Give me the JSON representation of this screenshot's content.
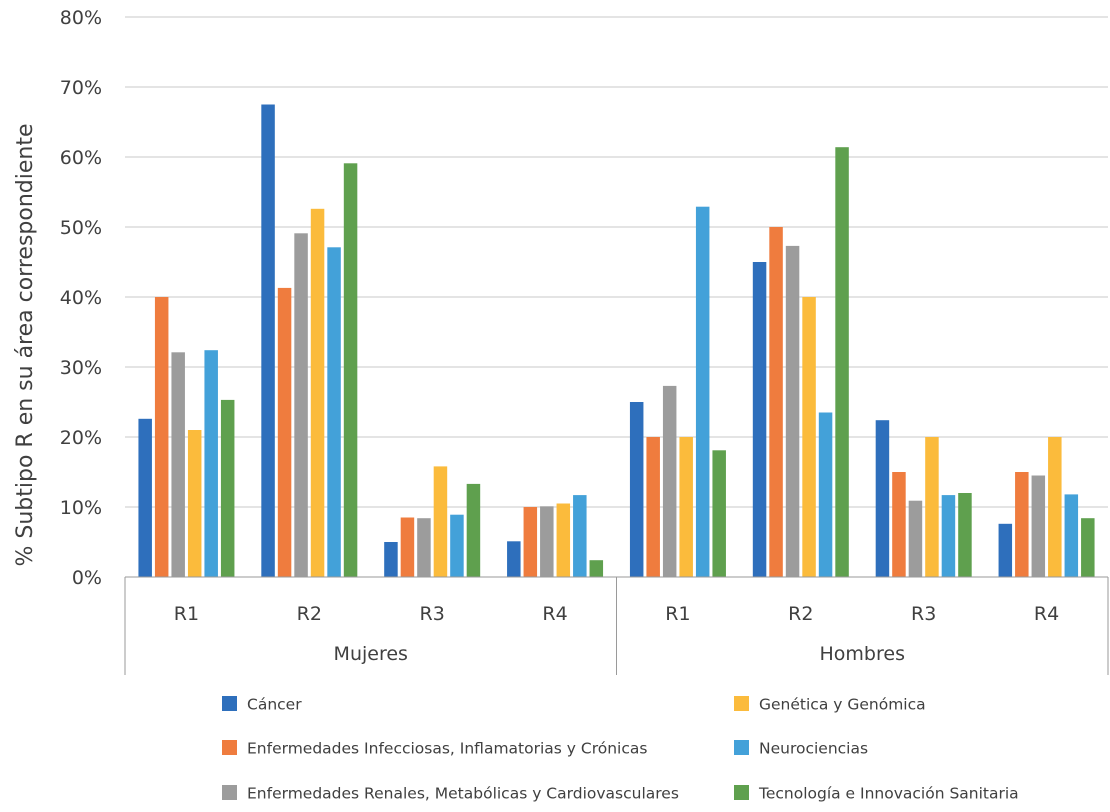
{
  "chart_data": {
    "type": "bar",
    "ylabel": "% Subtipo R en su área correspondiente",
    "ylim": [
      0,
      80
    ],
    "yticks": [
      0,
      10,
      20,
      30,
      40,
      50,
      60,
      70,
      80
    ],
    "ytick_labels": [
      "0%",
      "10%",
      "20%",
      "30%",
      "40%",
      "50%",
      "60%",
      "70%",
      "80%"
    ],
    "grid": true,
    "legend_position": "bottom",
    "groups": [
      {
        "label": "Mujeres",
        "categories": [
          "R1",
          "R2",
          "R3",
          "R4"
        ]
      },
      {
        "label": "Hombres",
        "categories": [
          "R1",
          "R2",
          "R3",
          "R4"
        ]
      }
    ],
    "categories": [
      "R1",
      "R2",
      "R3",
      "R4",
      "R1",
      "R2",
      "R3",
      "R4"
    ],
    "series": [
      {
        "name": "Cáncer",
        "color": "#2e6fbc",
        "values": [
          22.6,
          67.5,
          5.0,
          5.1,
          25.0,
          45.0,
          22.4,
          7.6
        ]
      },
      {
        "name": "Enfermedades Infecciosas, Inflamatorias y Crónicas",
        "color": "#ef7c3e",
        "values": [
          40.0,
          41.3,
          8.5,
          10.0,
          20.0,
          50.0,
          15.0,
          15.0
        ]
      },
      {
        "name": "Enfermedades Renales, Metabólicas y Cardiovasculares",
        "color": "#9c9c9c",
        "values": [
          32.1,
          49.1,
          8.4,
          10.1,
          27.3,
          47.3,
          10.9,
          14.5
        ]
      },
      {
        "name": "Genética y Genómica",
        "color": "#fbbb3c",
        "values": [
          21.0,
          52.6,
          15.8,
          10.5,
          20.0,
          40.0,
          20.0,
          20.0
        ]
      },
      {
        "name": "Neurociencias",
        "color": "#43a1d9",
        "values": [
          32.4,
          47.1,
          8.9,
          11.7,
          52.9,
          23.5,
          11.7,
          11.8
        ]
      },
      {
        "name": "Tecnología e Innovación Sanitaria",
        "color": "#5fa04e",
        "values": [
          25.3,
          59.1,
          13.3,
          2.4,
          18.1,
          61.4,
          12.0,
          8.4
        ]
      }
    ],
    "legend_columns": [
      [
        "Cáncer",
        "Enfermedades Infecciosas, Inflamatorias y Crónicas",
        "Enfermedades Renales, Metabólicas y Cardiovasculares"
      ],
      [
        "Genética y Genómica",
        "Neurociencias",
        "Tecnología e Innovación Sanitaria"
      ]
    ]
  }
}
